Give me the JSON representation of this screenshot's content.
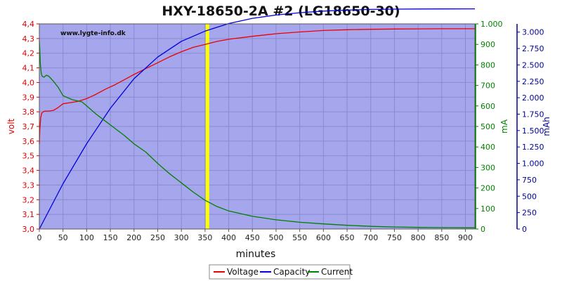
{
  "chart_data": {
    "type": "line",
    "title": "HXY-18650-2A #2 (LG18650-30)",
    "watermark": "www.lygte-info.dk",
    "xlabel": "minutes",
    "xlim": [
      0,
      920
    ],
    "xticks": [
      "0",
      "50",
      "100",
      "150",
      "200",
      "250",
      "300",
      "350",
      "400",
      "450",
      "500",
      "550",
      "600",
      "650",
      "700",
      "750",
      "800",
      "850",
      "900"
    ],
    "axes": {
      "left": {
        "label": "volt",
        "range": [
          3.0,
          4.4
        ],
        "color": "#dd0000",
        "ticks": [
          "3,0",
          "3,1",
          "3,2",
          "3,3",
          "3,4",
          "3,5",
          "3,6",
          "3,7",
          "3,8",
          "3,9",
          "4,0",
          "4,1",
          "4,2",
          "4,3",
          "4,4"
        ]
      },
      "right1": {
        "label": "mA",
        "range": [
          0,
          1000
        ],
        "color": "#008000",
        "ticks": [
          "0",
          "100",
          "200",
          "300",
          "400",
          "500",
          "600",
          "700",
          "800",
          "900",
          "1.000"
        ]
      },
      "right2": {
        "label": "mAh",
        "range": [
          0,
          3125
        ],
        "color": "#000099",
        "ticks": [
          "0",
          "250",
          "500",
          "750",
          "1.000",
          "1.250",
          "1.500",
          "1.750",
          "2.000",
          "2.250",
          "2.500",
          "2.750",
          "3.000"
        ]
      }
    },
    "grid": true,
    "marker": {
      "x": 355,
      "color": "#ffff00"
    },
    "legend_position": "bottom",
    "series": [
      {
        "name": "Voltage",
        "axis": "left",
        "color": "#ee0000",
        "x": [
          0,
          1,
          3,
          5,
          8,
          12,
          20,
          30,
          40,
          50,
          60,
          70,
          80,
          90,
          100,
          120,
          140,
          160,
          180,
          200,
          225,
          250,
          275,
          300,
          325,
          350,
          375,
          400,
          450,
          500,
          550,
          600,
          650,
          700,
          750,
          800,
          850,
          900,
          920
        ],
        "y": [
          3.58,
          3.68,
          3.76,
          3.79,
          3.8,
          3.805,
          3.805,
          3.81,
          3.83,
          3.855,
          3.86,
          3.865,
          3.87,
          3.88,
          3.89,
          3.92,
          3.955,
          3.985,
          4.02,
          4.055,
          4.095,
          4.135,
          4.175,
          4.21,
          4.24,
          4.26,
          4.28,
          4.295,
          4.315,
          4.333,
          4.345,
          4.355,
          4.36,
          4.363,
          4.365,
          4.366,
          4.367,
          4.367,
          4.367
        ]
      },
      {
        "name": "Capacity",
        "axis": "right2",
        "color": "#0000dd",
        "x": [
          0,
          50,
          100,
          150,
          200,
          250,
          300,
          350,
          400,
          450,
          500,
          550,
          600,
          650,
          700,
          750,
          800,
          850,
          900,
          920
        ],
        "y": [
          0,
          690,
          1300,
          1840,
          2290,
          2620,
          2860,
          3015,
          3130,
          3210,
          3260,
          3295,
          3320,
          3335,
          3345,
          3350,
          3352,
          3353,
          3354,
          3354
        ]
      },
      {
        "name": "Current",
        "axis": "right1",
        "color": "#008000",
        "x": [
          0,
          1,
          2,
          4,
          6,
          10,
          15,
          20,
          30,
          40,
          50,
          60,
          70,
          80,
          90,
          100,
          120,
          140,
          160,
          180,
          200,
          225,
          250,
          275,
          300,
          325,
          350,
          375,
          400,
          450,
          500,
          550,
          600,
          650,
          700,
          750,
          800,
          850,
          900,
          920
        ],
        "y": [
          920,
          870,
          810,
          760,
          745,
          740,
          750,
          745,
          720,
          690,
          650,
          640,
          630,
          625,
          620,
          600,
          560,
          525,
          490,
          455,
          415,
          375,
          320,
          270,
          225,
          180,
          140,
          110,
          88,
          62,
          45,
          33,
          25,
          18,
          13,
          10,
          8,
          7,
          6,
          6
        ]
      }
    ]
  }
}
